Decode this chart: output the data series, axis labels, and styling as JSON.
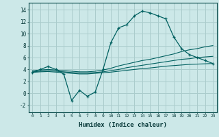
{
  "xlabel": "Humidex (Indice chaleur)",
  "bg_color": "#cce8e8",
  "grid_color": "#aacccc",
  "line_color": "#006060",
  "xlim": [
    -0.5,
    23.5
  ],
  "ylim": [
    -3.2,
    15.2
  ],
  "yticks": [
    -2,
    0,
    2,
    4,
    6,
    8,
    10,
    12,
    14
  ],
  "xticks": [
    0,
    1,
    2,
    3,
    4,
    5,
    6,
    7,
    8,
    9,
    10,
    11,
    12,
    13,
    14,
    15,
    16,
    17,
    18,
    19,
    20,
    21,
    22,
    23
  ],
  "main_line": [
    3.5,
    4.0,
    4.5,
    4.0,
    3.2,
    -1.2,
    0.5,
    -0.5,
    0.2,
    4.0,
    8.5,
    11.0,
    11.5,
    13.0,
    13.8,
    13.5,
    13.0,
    12.5,
    9.5,
    7.5,
    6.5,
    6.0,
    5.5,
    5.0
  ],
  "line1": [
    3.8,
    3.9,
    4.0,
    3.9,
    3.8,
    3.7,
    3.6,
    3.6,
    3.7,
    3.9,
    4.2,
    4.6,
    4.9,
    5.2,
    5.5,
    5.7,
    6.0,
    6.3,
    6.6,
    7.0,
    7.3,
    7.5,
    7.8,
    8.0
  ],
  "line2": [
    3.6,
    3.7,
    3.8,
    3.7,
    3.6,
    3.5,
    3.4,
    3.4,
    3.5,
    3.6,
    3.8,
    4.0,
    4.3,
    4.5,
    4.7,
    4.9,
    5.1,
    5.3,
    5.5,
    5.7,
    5.8,
    6.0,
    6.1,
    6.2
  ],
  "line3": [
    3.5,
    3.6,
    3.65,
    3.55,
    3.45,
    3.35,
    3.25,
    3.25,
    3.35,
    3.45,
    3.55,
    3.7,
    3.85,
    4.0,
    4.15,
    4.25,
    4.4,
    4.55,
    4.65,
    4.75,
    4.85,
    4.9,
    4.95,
    5.0
  ]
}
